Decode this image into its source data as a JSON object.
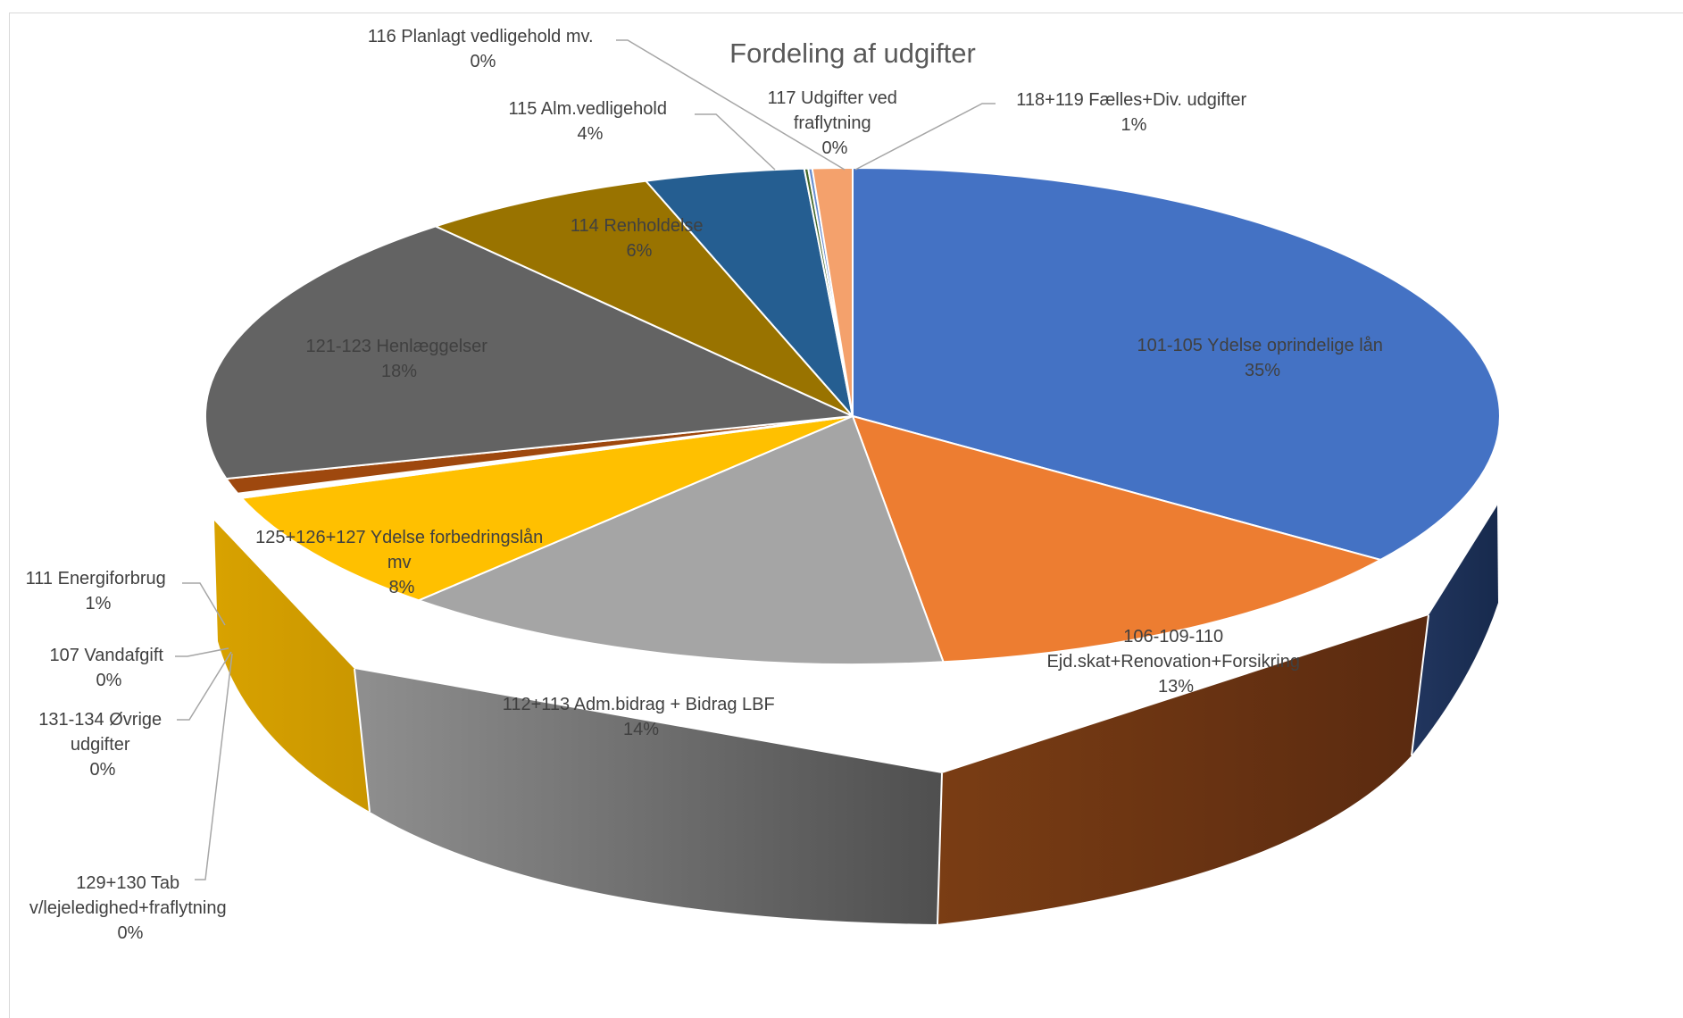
{
  "chart_data": {
    "type": "pie",
    "title": "Fordeling af udgifter",
    "slices": [
      {
        "label": "101-105  Ydelse oprindelige lån",
        "percent_label": "35%",
        "value": 35,
        "color": "#4472c4"
      },
      {
        "label": "106-109-110 Ejd.skat+Renovation+Forsikring",
        "percent_label": "13%",
        "value": 13,
        "color": "#ed7d31"
      },
      {
        "label": "112+113 Adm.bidrag + Bidrag LBF",
        "percent_label": "14%",
        "value": 14,
        "color": "#a5a5a5"
      },
      {
        "label": "125+126+127 Ydelse forbedringslån mv",
        "percent_label": "8%",
        "value": 8,
        "color": "#ffc000"
      },
      {
        "label": "129+130 Tab v/lejeledighed+fraflytning",
        "percent_label": "0%",
        "value": 0.1,
        "color": "#7a9fd6"
      },
      {
        "label": "131-134 Øvrige udgifter",
        "percent_label": "0%",
        "value": 0.1,
        "color": "#a9d18e"
      },
      {
        "label": "107 Vandafgift",
        "percent_label": "0%",
        "value": 0.1,
        "color": "#9dc3e6"
      },
      {
        "label": "111 Energiforbrug",
        "percent_label": "1%",
        "value": 1,
        "color": "#9e480e"
      },
      {
        "label": "121-123 Henlæggelser",
        "percent_label": "18%",
        "value": 18,
        "color": "#636363"
      },
      {
        "label": "114 Renholdelse",
        "percent_label": "6%",
        "value": 6,
        "color": "#997300"
      },
      {
        "label": "115 Alm.vedligehold",
        "percent_label": "4%",
        "value": 4,
        "color": "#255e91"
      },
      {
        "label": "116 Planlagt vedligehold mv.",
        "percent_label": "0%",
        "value": 0.1,
        "color": "#43682b"
      },
      {
        "label": "117 Udgifter ved fraflytning",
        "percent_label": "0%",
        "value": 0.1,
        "color": "#698ed0"
      },
      {
        "label": "118+119 Fælles+Div. udgifter",
        "percent_label": "1%",
        "value": 1,
        "color": "#f4a16c"
      }
    ]
  },
  "labels": {
    "s0": {
      "line1": "101-105  Ydelse oprindelige lån",
      "pct": "35%"
    },
    "s1": {
      "line1": "106-109-110",
      "line2": "Ejd.skat+Renovation+Forsikring",
      "pct": "13%"
    },
    "s2": {
      "line1": "112+113 Adm.bidrag + Bidrag LBF",
      "pct": "14%"
    },
    "s3": {
      "line1": "125+126+127 Ydelse forbedringslån",
      "line2": "mv",
      "pct": "8%"
    },
    "s4": {
      "line1": "129+130 Tab",
      "line2": "v/lejeledighed+fraflytning",
      "pct": "0%"
    },
    "s5": {
      "line1": "131-134 Øvrige",
      "line2": "udgifter",
      "pct": "0%"
    },
    "s6": {
      "line1": "107 Vandafgift",
      "pct": "0%"
    },
    "s7": {
      "line1": "111 Energiforbrug",
      "pct": "1%"
    },
    "s8": {
      "line1": "121-123 Henlæggelser",
      "pct": "18%"
    },
    "s9": {
      "line1": "114 Renholdelse",
      "pct": "6%"
    },
    "s10": {
      "line1": "115 Alm.vedligehold",
      "pct": "4%"
    },
    "s11": {
      "line1": "116 Planlagt vedligehold mv.",
      "pct": "0%"
    },
    "s12": {
      "line1": "117 Udgifter ved",
      "line2": "fraflytning",
      "pct": "0%"
    },
    "s13": {
      "line1": "118+119 Fælles+Div. udgifter",
      "pct": "1%"
    }
  }
}
